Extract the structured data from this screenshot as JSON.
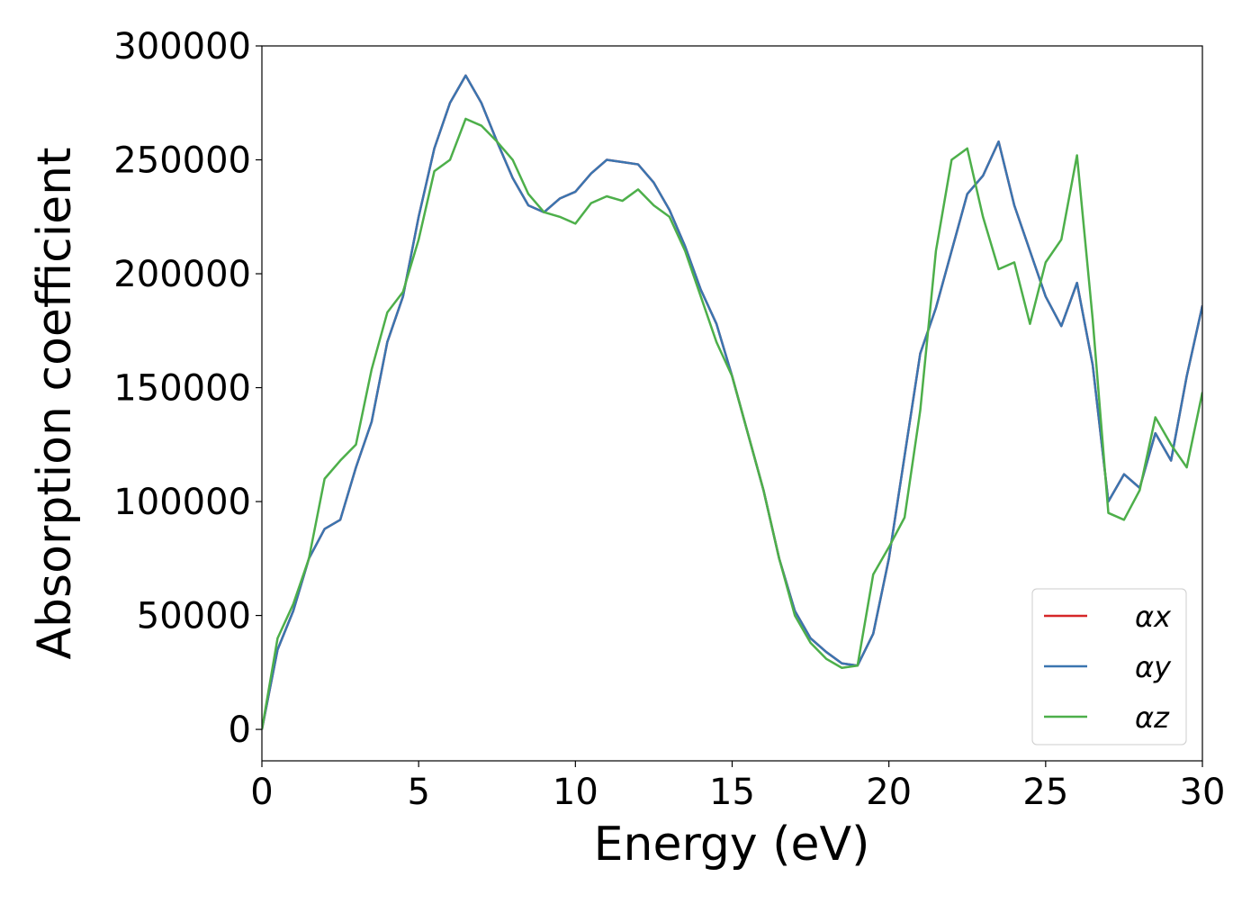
{
  "chart_data": {
    "type": "line",
    "xlabel": "Energy (eV)",
    "ylabel": "Absorption coefficient",
    "x": [
      0,
      0.5,
      1,
      1.5,
      2,
      2.5,
      3,
      3.5,
      4,
      4.5,
      5,
      5.5,
      6,
      6.5,
      7,
      7.5,
      8,
      8.5,
      9,
      9.5,
      10,
      10.5,
      11,
      11.5,
      12,
      12.5,
      13,
      13.5,
      14,
      14.5,
      15,
      15.5,
      16,
      16.5,
      17,
      17.5,
      18,
      18.5,
      19,
      19.5,
      20,
      20.5,
      21,
      21.5,
      22,
      22.5,
      23,
      23.5,
      24,
      24.5,
      25,
      25.5,
      26,
      26.5,
      27,
      27.5,
      28,
      28.5,
      29,
      29.5,
      30
    ],
    "series": [
      {
        "name": "αx",
        "color": "#d62728",
        "values": [
          0,
          35000,
          52000,
          75000,
          88000,
          92000,
          115000,
          135000,
          170000,
          190000,
          225000,
          255000,
          275000,
          287000,
          275000,
          258000,
          242000,
          230000,
          227000,
          233000,
          236000,
          244000,
          250000,
          249000,
          248000,
          240000,
          228000,
          212000,
          193000,
          178000,
          155000,
          130000,
          105000,
          75000,
          52000,
          40000,
          34000,
          29000,
          28000,
          42000,
          75000,
          120000,
          165000,
          185000,
          210000,
          235000,
          243000,
          258000,
          230000,
          210000,
          190000,
          177000,
          196000,
          160000,
          100000,
          112000,
          106000,
          130000,
          118000,
          155000,
          186000
        ]
      },
      {
        "name": "αy",
        "color": "#3a75b0",
        "values": [
          0,
          35000,
          52000,
          75000,
          88000,
          92000,
          115000,
          135000,
          170000,
          190000,
          225000,
          255000,
          275000,
          287000,
          275000,
          258000,
          242000,
          230000,
          227000,
          233000,
          236000,
          244000,
          250000,
          249000,
          248000,
          240000,
          228000,
          212000,
          193000,
          178000,
          155000,
          130000,
          105000,
          75000,
          52000,
          40000,
          34000,
          29000,
          28000,
          42000,
          75000,
          120000,
          165000,
          185000,
          210000,
          235000,
          243000,
          258000,
          230000,
          210000,
          190000,
          177000,
          196000,
          160000,
          100000,
          112000,
          106000,
          130000,
          118000,
          155000,
          186000
        ]
      },
      {
        "name": "αz",
        "color": "#4daf4a",
        "values": [
          0,
          40000,
          55000,
          75000,
          110000,
          118000,
          125000,
          158000,
          183000,
          192000,
          215000,
          245000,
          250000,
          268000,
          265000,
          258000,
          250000,
          235000,
          227000,
          225000,
          222000,
          231000,
          234000,
          232000,
          237000,
          230000,
          225000,
          210000,
          190000,
          170000,
          155000,
          130000,
          105000,
          75000,
          50000,
          38000,
          31000,
          27000,
          28000,
          68000,
          80000,
          93000,
          140000,
          210000,
          250000,
          255000,
          225000,
          202000,
          205000,
          178000,
          205000,
          215000,
          252000,
          180000,
          95000,
          92000,
          105000,
          137000,
          125000,
          115000,
          148000
        ]
      }
    ],
    "xlim": [
      0,
      30
    ],
    "xticks": [
      0,
      5,
      10,
      15,
      20,
      25,
      30
    ],
    "ylim": [
      -13800,
      300000
    ],
    "yticks": [
      0,
      50000,
      100000,
      150000,
      200000,
      250000,
      300000
    ],
    "legend": "lower right"
  }
}
